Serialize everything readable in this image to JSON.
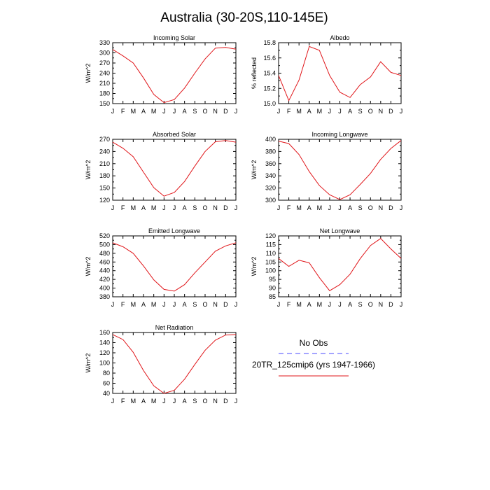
{
  "title": "Australia (30-20S,110-145E)",
  "legend": {
    "obs_label": "No Obs",
    "obs_color": "#4a4aff",
    "model_label": "20TR_125cmip6 (yrs 1947-1966)",
    "model_color": "#e0161a"
  },
  "chart_data": [
    {
      "type": "line",
      "title": "Incoming Solar",
      "ylabel": "W/m^2",
      "categories": [
        "J",
        "F",
        "M",
        "A",
        "M",
        "J",
        "J",
        "A",
        "S",
        "O",
        "N",
        "D",
        "J"
      ],
      "ylim": [
        150,
        330
      ],
      "yticks": [
        150,
        180,
        210,
        240,
        270,
        300,
        330
      ],
      "series": [
        {
          "values": [
            310,
            291,
            270,
            226,
            177,
            153,
            162,
            196,
            240,
            282,
            314,
            316,
            311
          ]
        }
      ]
    },
    {
      "type": "line",
      "title": "Albedo",
      "ylabel": "% reflected",
      "categories": [
        "J",
        "F",
        "M",
        "A",
        "M",
        "J",
        "J",
        "A",
        "S",
        "O",
        "N",
        "D",
        "J"
      ],
      "ylim": [
        15.0,
        15.8
      ],
      "yticks": [
        15.0,
        15.2,
        15.4,
        15.6,
        15.8
      ],
      "ytick_labels": [
        "15.0",
        "15.2",
        "15.4",
        "15.6",
        "15.8"
      ],
      "series": [
        {
          "values": [
            15.37,
            15.04,
            15.31,
            15.75,
            15.7,
            15.37,
            15.15,
            15.08,
            15.25,
            15.35,
            15.55,
            15.41,
            15.37
          ]
        }
      ]
    },
    {
      "type": "line",
      "title": "Absorbed Solar",
      "ylabel": "W/m^2",
      "categories": [
        "J",
        "F",
        "M",
        "A",
        "M",
        "J",
        "J",
        "A",
        "S",
        "O",
        "N",
        "D",
        "J"
      ],
      "ylim": [
        120,
        270
      ],
      "yticks": [
        120,
        150,
        180,
        210,
        240,
        270
      ],
      "series": [
        {
          "values": [
            263,
            248,
            227,
            189,
            151,
            130,
            139,
            166,
            204,
            240,
            264,
            267,
            263
          ]
        }
      ]
    },
    {
      "type": "line",
      "title": "Incoming Longwave",
      "ylabel": "W/m^2",
      "categories": [
        "J",
        "F",
        "M",
        "A",
        "M",
        "J",
        "J",
        "A",
        "S",
        "O",
        "N",
        "D",
        "J"
      ],
      "ylim": [
        300,
        400
      ],
      "yticks": [
        300,
        320,
        340,
        360,
        380,
        400
      ],
      "series": [
        {
          "values": [
            397,
            393,
            375,
            347,
            324,
            309,
            301,
            309,
            326,
            344,
            367,
            385,
            398
          ]
        }
      ]
    },
    {
      "type": "line",
      "title": "Emitted Longwave",
      "ylabel": "W/m^2",
      "categories": [
        "J",
        "F",
        "M",
        "A",
        "M",
        "J",
        "J",
        "A",
        "S",
        "O",
        "N",
        "D",
        "J"
      ],
      "ylim": [
        380,
        520
      ],
      "yticks": [
        380,
        400,
        420,
        440,
        460,
        480,
        500,
        520
      ],
      "series": [
        {
          "values": [
            504,
            495,
            480,
            451,
            419,
            397,
            393,
            408,
            435,
            460,
            485,
            497,
            504
          ]
        }
      ]
    },
    {
      "type": "line",
      "title": "Net Longwave",
      "ylabel": "W/m^2",
      "categories": [
        "J",
        "F",
        "M",
        "A",
        "M",
        "J",
        "J",
        "A",
        "S",
        "O",
        "N",
        "D",
        "J"
      ],
      "ylim": [
        85,
        120
      ],
      "yticks": [
        85,
        90,
        95,
        100,
        105,
        110,
        115,
        120
      ],
      "series": [
        {
          "values": [
            107,
            102.5,
            106,
            104.5,
            96,
            88.5,
            92,
            98,
            107,
            114.5,
            118.5,
            112.5,
            107
          ]
        }
      ]
    },
    {
      "type": "line",
      "title": "Net Radiation",
      "ylabel": "W/m^2",
      "categories": [
        "J",
        "F",
        "M",
        "A",
        "M",
        "J",
        "J",
        "A",
        "S",
        "O",
        "N",
        "D",
        "J"
      ],
      "ylim": [
        40,
        160
      ],
      "yticks": [
        40,
        60,
        80,
        100,
        120,
        140,
        160
      ],
      "series": [
        {
          "values": [
            156,
            146,
            121,
            85,
            55,
            40,
            46,
            68,
            97,
            125,
            145,
            155,
            156
          ]
        }
      ]
    }
  ]
}
